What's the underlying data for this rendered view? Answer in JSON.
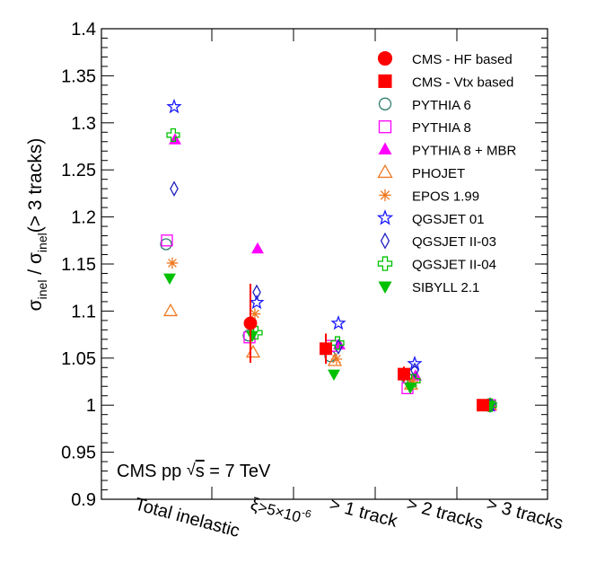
{
  "chart_data": {
    "type": "scatter",
    "title": "",
    "ylabel": "σinel / σinel(> 3 tracks)",
    "ylabel_parts": {
      "sigma": "σ",
      "sub": "inel",
      "mid": " / ",
      "tail": "(> 3 tracks)"
    },
    "ylim": [
      0.9,
      1.4
    ],
    "yticks": [
      "0.9",
      "0.95",
      "1",
      "1.05",
      "1.1",
      "1.15",
      "1.2",
      "1.25",
      "1.3",
      "1.35",
      "1.4"
    ],
    "categories": [
      "Total inelastic",
      "ξ>5×10⁻⁶",
      "> 1 track",
      "> 2 tracks",
      "> 3 tracks"
    ],
    "category_parts": {
      "xi": "ξ",
      "rest": ">5×10",
      "exp": "-6"
    },
    "annotation": {
      "prefix": "CMS pp ",
      "sqrt": "√",
      "s": "s",
      "suffix": " = 7 TeV",
      "full": "CMS pp √s = 7 TeV"
    },
    "series": [
      {
        "name": "CMS - HF based",
        "marker": "filled-circle",
        "color": "#ff0000",
        "points": [
          {
            "cat": 1,
            "y": 1.087,
            "err_low": 0.042,
            "err_high": 0.042
          }
        ]
      },
      {
        "name": "CMS - Vtx based",
        "marker": "filled-square",
        "color": "#ff0000",
        "points": [
          {
            "cat": 2,
            "y": 1.06,
            "err_low": 0.016,
            "err_high": 0.016
          },
          {
            "cat": 3,
            "y": 1.033,
            "err_low": 0.008,
            "err_high": 0.008
          },
          {
            "cat": 4,
            "y": 1.0,
            "err_low": 0,
            "err_high": 0
          }
        ]
      },
      {
        "name": "PYTHIA 6",
        "marker": "open-circle",
        "color": "#2e7d6e",
        "values": [
          1.171,
          1.074,
          1.052,
          1.029,
          1.0
        ]
      },
      {
        "name": "PYTHIA 8",
        "marker": "open-square",
        "color": "#ff00ff",
        "values": [
          1.175,
          1.072,
          1.063,
          1.018,
          1.0
        ]
      },
      {
        "name": "PYTHIA 8 + MBR",
        "marker": "filled-triangle",
        "color": "#ff00ff",
        "values": [
          1.282,
          1.166,
          1.064,
          1.031,
          1.0
        ]
      },
      {
        "name": "PHOJET",
        "marker": "open-triangle",
        "color": "#f07820",
        "values": [
          1.1,
          1.056,
          1.047,
          1.022,
          1.0
        ]
      },
      {
        "name": "EPOS 1.99",
        "marker": "asterisk",
        "color": "#f07820",
        "values": [
          1.151,
          1.097,
          1.049,
          1.025,
          1.0
        ]
      },
      {
        "name": "QGSJET 01",
        "marker": "open-star",
        "color": "#1a1aff",
        "values": [
          1.317,
          1.109,
          1.087,
          1.044,
          1.0
        ]
      },
      {
        "name": "QGSJET II-03",
        "marker": "open-diamond",
        "color": "#2020c0",
        "values": [
          1.23,
          1.12,
          1.062,
          1.037,
          1.0
        ]
      },
      {
        "name": "QGSJET II-04",
        "marker": "open-cross",
        "color": "#00c000",
        "values": [
          1.287,
          1.077,
          1.066,
          1.026,
          1.0
        ]
      },
      {
        "name": "SIBYLL 2.1",
        "marker": "filled-triangle-down",
        "color": "#00c000",
        "values": [
          1.135,
          1.074,
          1.033,
          1.019,
          1.0
        ]
      }
    ]
  }
}
